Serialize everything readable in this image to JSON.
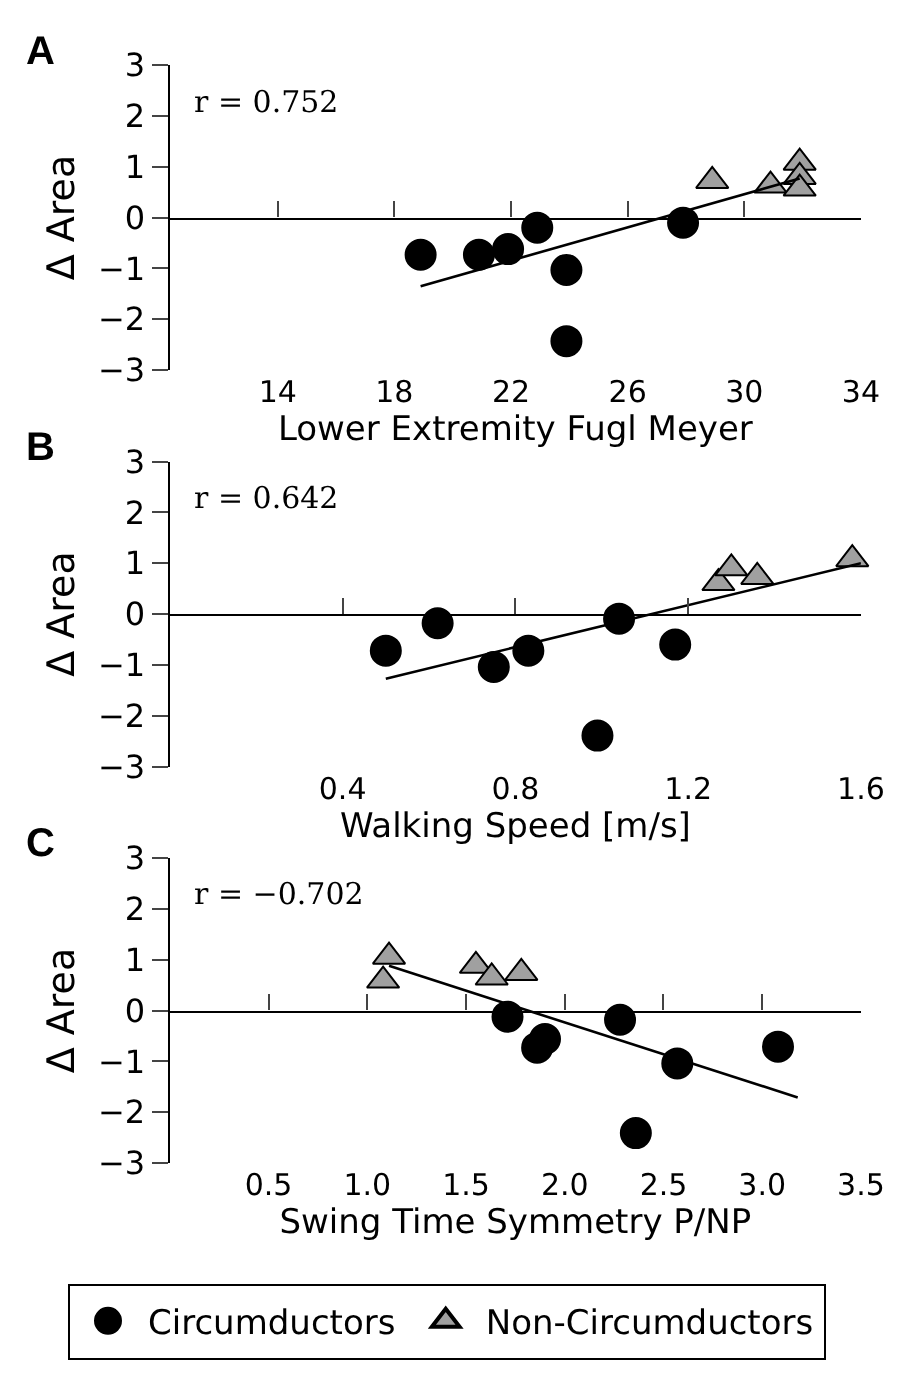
{
  "chart_data": [
    {
      "type": "scatter",
      "title": "A",
      "xlabel": "Lower Extremity Fugl Meyer",
      "ylabel": "Δ Area",
      "annotations": [
        "r = 0.752"
      ],
      "xlim": [
        10.3,
        34
      ],
      "xticks": [
        14,
        18,
        22,
        26,
        30,
        34
      ],
      "ylim": [
        -3,
        3
      ],
      "yticks": [
        -3,
        -2,
        -1,
        0,
        1,
        2,
        3
      ],
      "legend": "bottom",
      "series": [
        {
          "name": "Circumductors",
          "color": "#000000",
          "marker": "circle",
          "x": [
            18.9,
            20.9,
            21.9,
            22.9,
            23.9,
            23.9,
            27.9
          ],
          "values": [
            -0.73,
            -0.73,
            -0.62,
            -0.2,
            -1.03,
            -2.43,
            -0.1
          ]
        },
        {
          "name": "Non-Circumductors",
          "color": "#a0a0a0",
          "marker": "triangle",
          "x": [
            28.9,
            30.9,
            31.9,
            31.9,
            31.9
          ],
          "values": [
            0.72,
            0.63,
            1.08,
            0.8,
            0.57
          ]
        },
        {
          "type": "line",
          "color": "#000000",
          "marker": "none",
          "x": [
            18.9,
            31.9
          ],
          "values": [
            -1.35,
            0.77
          ]
        }
      ]
    },
    {
      "type": "scatter",
      "title": "B",
      "xlabel": "Walking Speed [m/s]",
      "ylabel": "Δ Area",
      "annotations": [
        "r = 0.642"
      ],
      "xlim": [
        0,
        1.6
      ],
      "xticks": [
        0.4,
        0.8,
        1.2,
        1.6
      ],
      "ylim": [
        -3,
        3
      ],
      "yticks": [
        -3,
        -2,
        -1,
        0,
        1,
        2,
        3
      ],
      "series": [
        {
          "name": "Circumductors",
          "color": "#000000",
          "marker": "circle",
          "x": [
            0.5,
            0.62,
            0.75,
            0.83,
            1.04,
            0.99,
            1.17
          ],
          "values": [
            -0.72,
            -0.18,
            -1.04,
            -0.72,
            -0.09,
            -2.39,
            -0.6
          ]
        },
        {
          "name": "Non-Circumductors",
          "color": "#a0a0a0",
          "marker": "triangle",
          "x": [
            1.27,
            1.3,
            1.36,
            1.58
          ],
          "values": [
            0.61,
            0.9,
            0.73,
            1.08
          ]
        },
        {
          "type": "line",
          "color": "#000000",
          "marker": "none",
          "x": [
            0.5,
            1.6
          ],
          "values": [
            -1.27,
            1.0
          ]
        }
      ]
    },
    {
      "type": "scatter",
      "title": "C",
      "xlabel": "Swing Time Symmetry P/NP",
      "ylabel": "Δ Area",
      "annotations": [
        "r = −0.702"
      ],
      "xlim": [
        0,
        3.5
      ],
      "xticks": [
        {
          "value": 0.5,
          "label": "0.5"
        },
        {
          "value": 1.0,
          "label": "1.0"
        },
        {
          "value": 1.5,
          "label": "1.5"
        },
        {
          "value": 2.0,
          "label": "2.0"
        },
        {
          "value": 2.5,
          "label": "2.5"
        },
        {
          "value": 3.0,
          "label": "3.0"
        },
        {
          "value": 3.5,
          "label": "3.5"
        }
      ],
      "ylim": [
        -3,
        3
      ],
      "yticks": [
        -3,
        -2,
        -1,
        0,
        1,
        2,
        3
      ],
      "series": [
        {
          "name": "Circumductors",
          "color": "#000000",
          "marker": "circle",
          "x": [
            1.71,
            1.86,
            1.9,
            2.28,
            2.36,
            2.57,
            3.08
          ],
          "values": [
            -0.12,
            -0.73,
            -0.56,
            -0.18,
            -2.41,
            -1.04,
            -0.71
          ]
        },
        {
          "name": "Non-Circumductors",
          "color": "#a0a0a0",
          "marker": "triangle",
          "x": [
            1.08,
            1.11,
            1.55,
            1.63,
            1.78
          ],
          "values": [
            0.59,
            1.06,
            0.88,
            0.65,
            0.74
          ]
        },
        {
          "type": "line",
          "color": "#000000",
          "marker": "none",
          "x": [
            1.11,
            3.18
          ],
          "values": [
            0.88,
            -1.71
          ]
        }
      ]
    }
  ]
}
